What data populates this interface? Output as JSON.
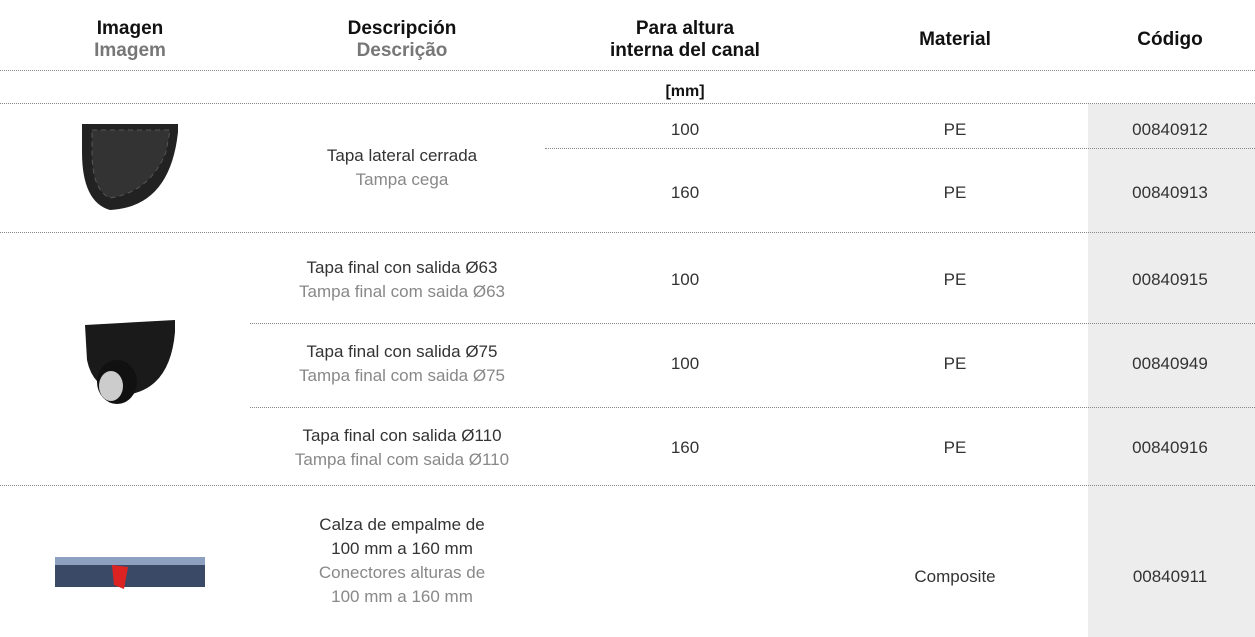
{
  "header": {
    "columns": [
      {
        "es": [
          "Imagen"
        ],
        "pt": [
          "Imagem"
        ]
      },
      {
        "es": [
          "Descripción"
        ],
        "pt": [
          "Descrição"
        ]
      },
      {
        "es": [
          "Para altura",
          "interna del canal"
        ]
      },
      {
        "es": [
          "Material"
        ]
      },
      {
        "es": [
          "Código"
        ]
      }
    ],
    "unit": "[mm]"
  },
  "groups": [
    {
      "description": {
        "es": [
          "Tapa lateral cerrada"
        ],
        "pt": [
          "Tampa cega"
        ]
      },
      "rows": [
        {
          "height": 100,
          "material": "PE",
          "code": "00840912"
        },
        {
          "height": 160,
          "material": "PE",
          "code": "00840913"
        }
      ]
    },
    {
      "rows": [
        {
          "description": {
            "es": [
              "Tapa final con salida Ø63"
            ],
            "pt": [
              "Tampa final com saida Ø63"
            ]
          },
          "height": 100,
          "material": "PE",
          "code": "00840915"
        },
        {
          "description": {
            "es": [
              "Tapa final con salida Ø75"
            ],
            "pt": [
              "Tampa final com saida Ø75"
            ]
          },
          "height": 100,
          "material": "PE",
          "code": "00840949"
        },
        {
          "description": {
            "es": [
              "Tapa final con salida Ø110"
            ],
            "pt": [
              "Tampa final com saida Ø110"
            ]
          },
          "height": 160,
          "material": "PE",
          "code": "00840916"
        }
      ]
    },
    {
      "description": {
        "es": [
          "Calza de empalme de",
          "100 mm a 160 mm"
        ],
        "pt": [
          "Conectores alturas de",
          "100 mm a 160 mm"
        ]
      },
      "rows": [
        {
          "material": "Composite",
          "code": "00840911"
        }
      ]
    }
  ]
}
